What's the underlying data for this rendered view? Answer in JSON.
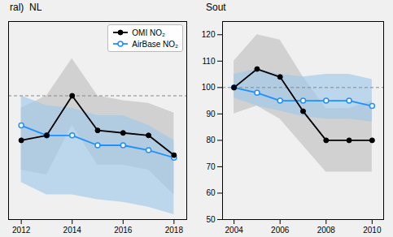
{
  "chart_data": [
    {
      "type": "line",
      "title": "ral)  NL",
      "x": [
        2012,
        2013,
        2014,
        2015,
        2016,
        2017,
        2018
      ],
      "xlim": [
        2011.5,
        2018.5
      ],
      "xticks": [
        2012,
        2014,
        2016,
        2018
      ],
      "ylim": [
        50,
        130
      ],
      "tick_labels": "x",
      "grid": false,
      "legend": "upper right",
      "hline": {
        "value": 100,
        "color": "#888888",
        "line_style": "dashed"
      },
      "series": [
        {
          "name": "OMI NO₂",
          "color": "#000000",
          "marker": "circle",
          "values": [
            82,
            84,
            100,
            86,
            85,
            84,
            76
          ],
          "low": [
            70,
            68,
            88,
            72,
            72,
            70,
            60
          ],
          "high": [
            95,
            100,
            115,
            100,
            98,
            97,
            93
          ],
          "band_color": "#c0c0c0"
        },
        {
          "name": "AirBase NO₂",
          "color": "#1e90ff",
          "marker": "open_circle",
          "values": [
            88,
            84,
            84,
            80,
            80,
            78,
            75
          ],
          "low": [
            65,
            60,
            60,
            58,
            57,
            55,
            52
          ],
          "high": [
            100,
            96,
            95,
            92,
            92,
            88,
            82
          ],
          "band_color": "#a0c8e8"
        }
      ]
    },
    {
      "type": "line",
      "title": "Sout",
      "x": [
        2004,
        2005,
        2006,
        2007,
        2008,
        2009,
        2010
      ],
      "xlim": [
        2003.5,
        2010.5
      ],
      "xticks": [
        2004,
        2006,
        2008,
        2010
      ],
      "ylim": [
        50,
        125
      ],
      "yticks": [
        50,
        60,
        70,
        80,
        90,
        100,
        110,
        120
      ],
      "grid": false,
      "hline": {
        "value": 100,
        "color": "#888888",
        "line_style": "dashed"
      },
      "series": [
        {
          "name": "OMI NO₂",
          "color": "#000000",
          "marker": "circle",
          "values": [
            100,
            107,
            104,
            91,
            80,
            80,
            80
          ],
          "low": [
            90,
            93,
            88,
            78,
            68,
            68,
            68
          ],
          "high": [
            110,
            120,
            118,
            104,
            92,
            92,
            95
          ],
          "band_color": "#c0c0c0"
        },
        {
          "name": "AirBase NO₂",
          "color": "#1e90ff",
          "marker": "open_circle",
          "values": [
            100,
            98,
            95,
            95,
            95,
            95,
            93
          ],
          "low": [
            96,
            93,
            91,
            89,
            88,
            88,
            87
          ],
          "high": [
            105,
            107,
            105,
            104,
            105,
            105,
            103
          ],
          "band_color": "#a0c8e8"
        }
      ]
    }
  ]
}
